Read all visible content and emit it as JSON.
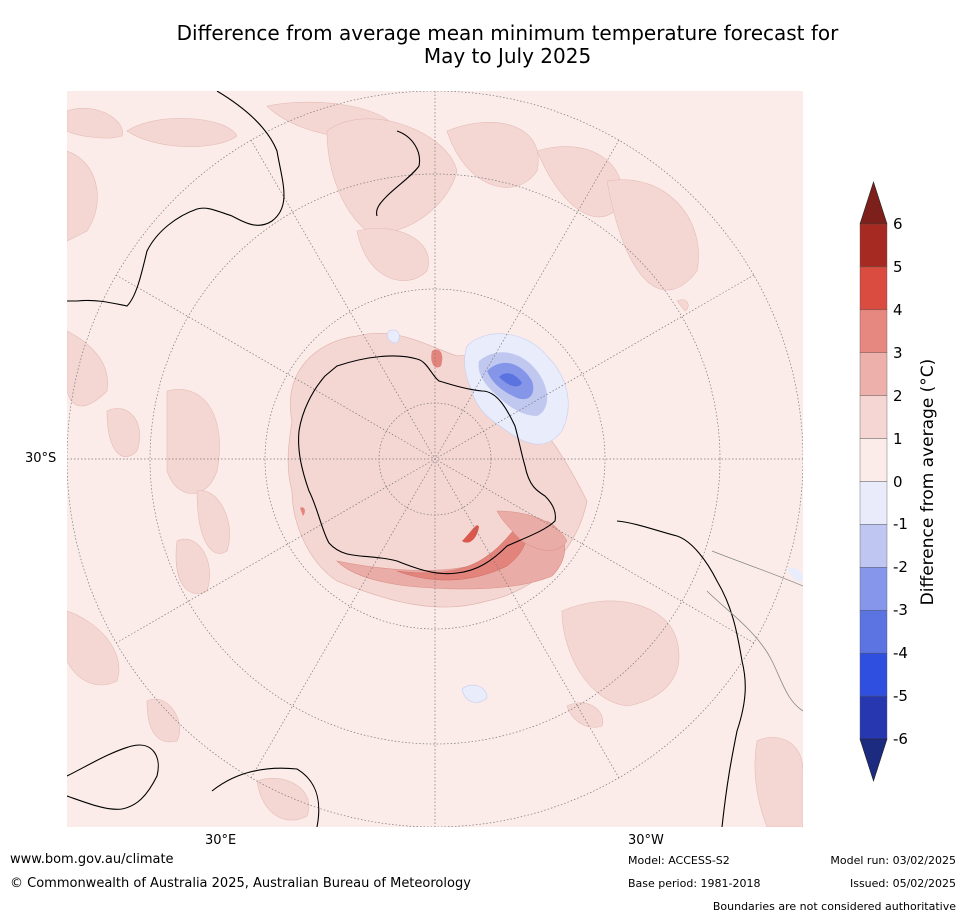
{
  "title": {
    "line1": "Difference from average mean minimum temperature forecast for",
    "line2": "May to July 2025"
  },
  "map": {
    "lat_label": "30°S",
    "lon_labels": [
      "30°E",
      "30°W"
    ],
    "colors": {
      "ocean_base": "#fbece9",
      "light_warm": "#f4d7d3",
      "mid_warm": "#eaaca6",
      "warm": "#e3847c",
      "hot": "#d9574b",
      "light_cool": "#e8ecfb",
      "mid_cool": "#c0c8f0",
      "cool": "#8596e8",
      "cold": "#5a73e0"
    }
  },
  "legend": {
    "title": "Difference from average (°C)",
    "ticks": [
      "6",
      "5",
      "4",
      "3",
      "2",
      "1",
      "0",
      "-1",
      "-2",
      "-3",
      "-4",
      "-5",
      "-6"
    ],
    "colors": [
      "#a72a22",
      "#d94c3f",
      "#e68880",
      "#edb0aa",
      "#f5d6d2",
      "#fbece9",
      "#e9ebfb",
      "#c0c6f2",
      "#8696ea",
      "#5b74e1",
      "#2f4fe0",
      "#2637b0"
    ],
    "top_arrow_color": "#7d1f1a",
    "bottom_arrow_color": "#1c2a80"
  },
  "footer": {
    "url": "www.bom.gov.au/climate",
    "copyright": "© Commonwealth of Australia 2025, Australian Bureau of Meteorology",
    "model": "Model: ACCESS-S2",
    "base_period": "Base period: 1981-2018",
    "model_run": "Model run: 03/02/2025",
    "issued": "Issued: 05/02/2025",
    "disclaimer": "Boundaries are not considered authoritative"
  }
}
